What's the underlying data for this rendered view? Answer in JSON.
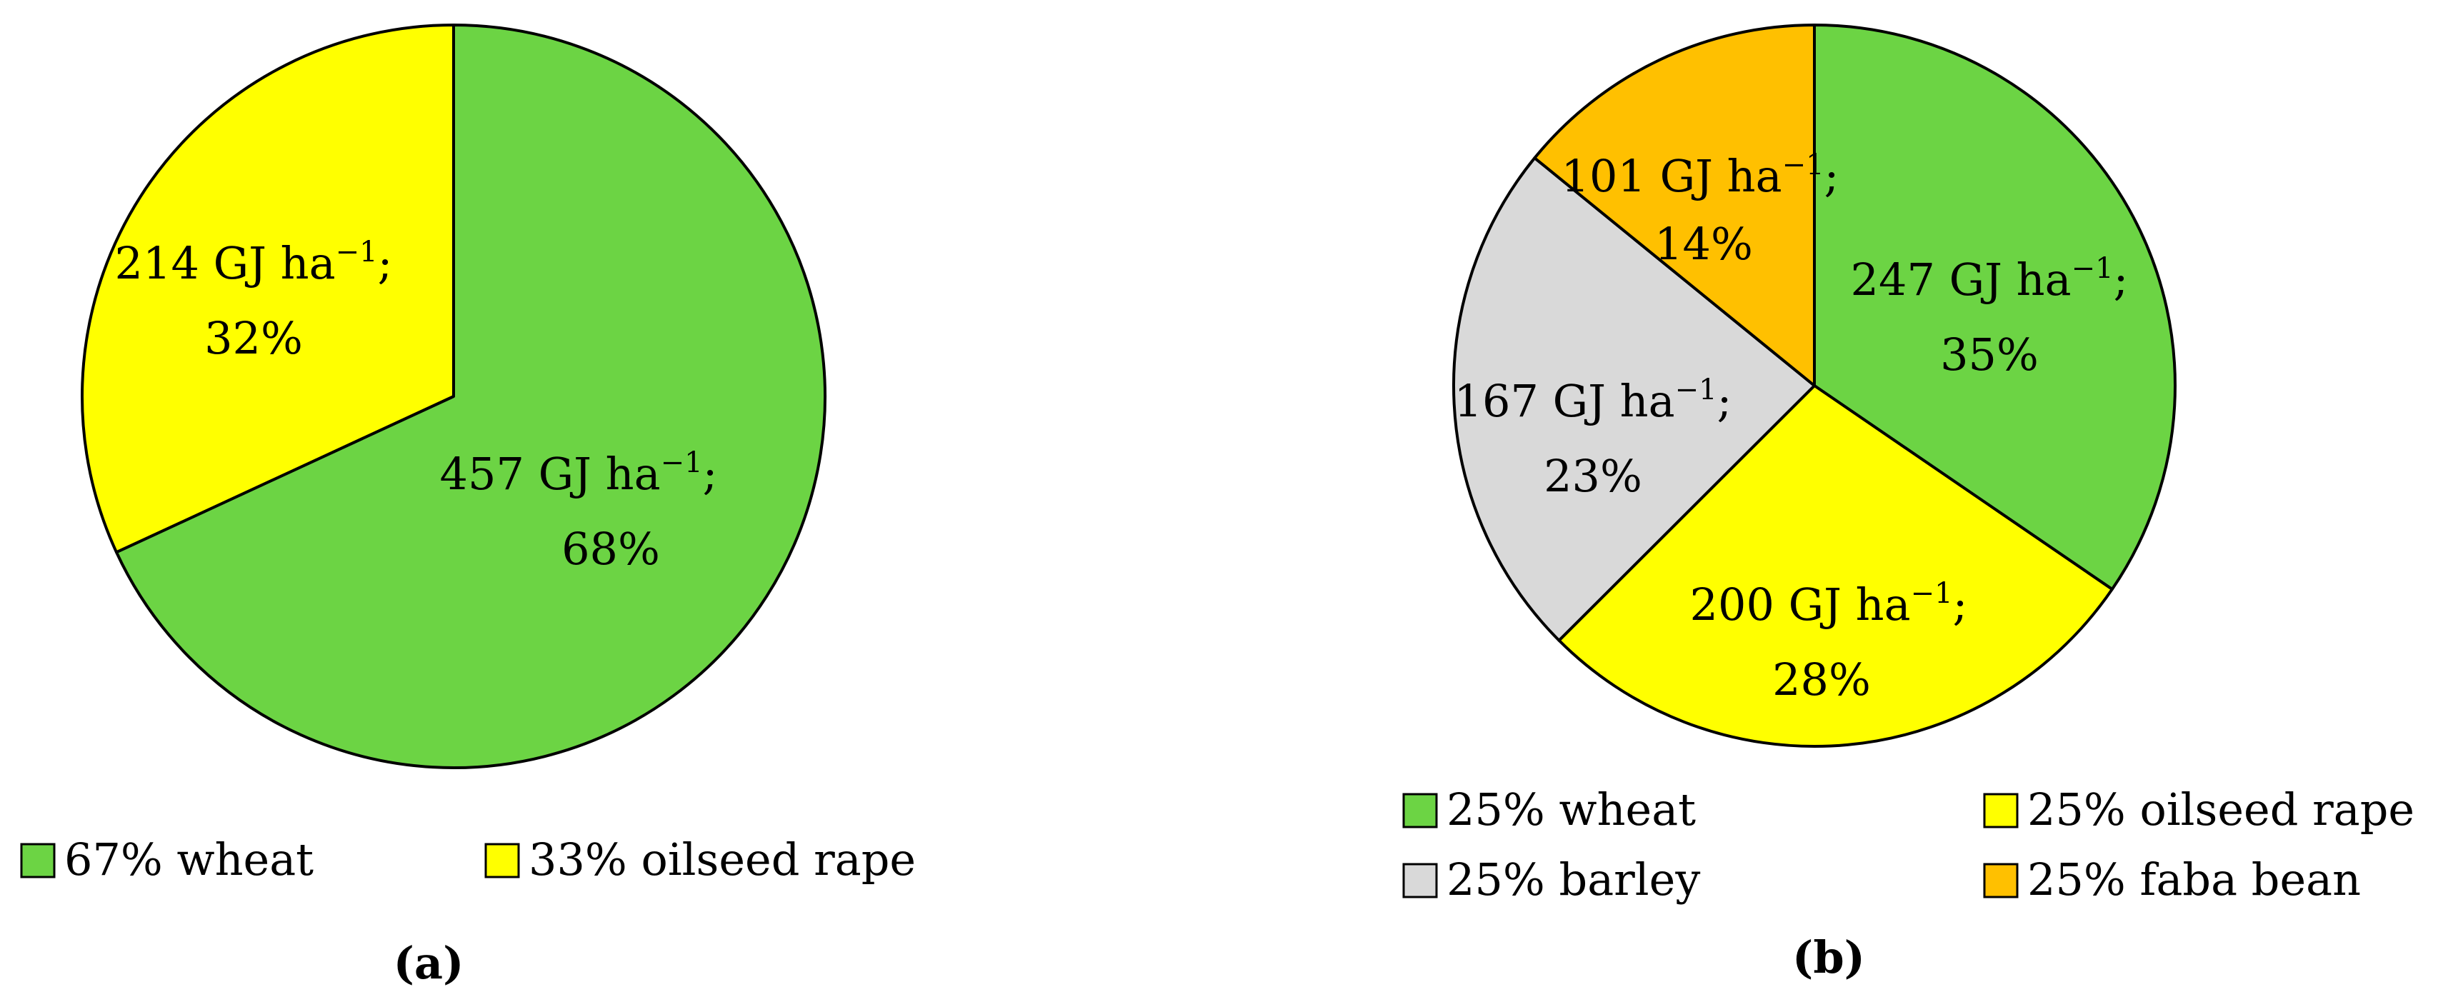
{
  "chart_data": [
    {
      "type": "pie",
      "caption": "(a)",
      "categories": [
        "67% wheat",
        "33% oilseed rape"
      ],
      "values": [
        457,
        214
      ],
      "unit": "GJ ha",
      "unit_superscript": "−1",
      "value_suffix": ";",
      "percent_labels": [
        "68%",
        "32%"
      ],
      "colors": [
        "#6cd444",
        "#ffff00"
      ],
      "start_angle_deg": 0,
      "direction": "clockwise",
      "legend": [
        {
          "label": "67% wheat",
          "color": "#6cd444"
        },
        {
          "label": "33% oilseed rape",
          "color": "#ffff00"
        }
      ],
      "legend_position": "bottom"
    },
    {
      "type": "pie",
      "caption": "(b)",
      "categories": [
        "25% wheat",
        "25% oilseed rape",
        "25% barley",
        "25% faba bean"
      ],
      "values": [
        247,
        200,
        167,
        101
      ],
      "unit": "GJ ha",
      "unit_superscript": "−1",
      "value_suffix": ";",
      "percent_labels": [
        "35%",
        "28%",
        "23%",
        "14%"
      ],
      "colors": [
        "#6cd444",
        "#ffff00",
        "#d9d9d9",
        "#ffc000"
      ],
      "start_angle_deg": 0,
      "direction": "clockwise",
      "legend": [
        {
          "label": "25% wheat",
          "color": "#6cd444"
        },
        {
          "label": "25% oilseed rape",
          "color": "#ffff00"
        },
        {
          "label": "25% barley",
          "color": "#d9d9d9"
        },
        {
          "label": "25% faba bean",
          "color": "#ffc000"
        }
      ],
      "legend_position": "bottom"
    }
  ]
}
